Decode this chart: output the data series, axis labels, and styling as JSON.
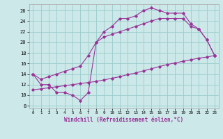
{
  "bg_color": "#cce8e8",
  "line_color": "#993399",
  "grid_color": "#99cccc",
  "xlabel": "Windchill (Refroidissement éolien,°C)",
  "ylabel_ticks": [
    8,
    10,
    12,
    14,
    16,
    18,
    20,
    22,
    24,
    26
  ],
  "xlabel_ticks": [
    0,
    1,
    2,
    3,
    4,
    5,
    6,
    7,
    8,
    9,
    10,
    11,
    12,
    13,
    14,
    15,
    16,
    17,
    18,
    19,
    20,
    21,
    22,
    23
  ],
  "xlim": [
    -0.5,
    23.5
  ],
  "ylim": [
    7.5,
    27.2
  ],
  "line1_x": [
    0,
    1,
    2,
    3,
    4,
    5,
    6,
    7,
    8,
    9,
    10,
    11,
    12,
    13,
    14,
    15,
    16,
    17,
    18,
    19,
    20,
    21,
    22,
    23
  ],
  "line1_y": [
    14,
    12,
    12,
    10.5,
    10.5,
    10,
    9,
    10.5,
    20,
    22,
    23,
    24.5,
    24.5,
    25,
    26,
    26.5,
    26,
    25.5,
    25.5,
    25.5,
    23.5,
    22.5,
    20.5,
    17.5
  ],
  "line2_x": [
    0,
    1,
    2,
    3,
    4,
    5,
    6,
    7,
    8,
    9,
    10,
    11,
    12,
    13,
    14,
    15,
    16,
    17,
    18,
    19,
    20,
    21,
    22,
    23
  ],
  "line2_y": [
    14,
    13,
    13.5,
    14,
    14.5,
    15,
    15.5,
    17.5,
    20,
    21,
    21.5,
    22,
    22.5,
    23,
    23.5,
    24,
    24.5,
    24.5,
    24.5,
    24.5,
    23,
    22.5,
    20.5,
    17.5
  ],
  "line3_x": [
    0,
    1,
    2,
    3,
    4,
    5,
    6,
    7,
    8,
    9,
    10,
    11,
    12,
    13,
    14,
    15,
    16,
    17,
    18,
    19,
    20,
    21,
    22,
    23
  ],
  "line3_y": [
    11,
    11.2,
    11.4,
    11.6,
    11.8,
    12.0,
    12.2,
    12.4,
    12.6,
    12.9,
    13.2,
    13.5,
    13.9,
    14.2,
    14.6,
    15.0,
    15.4,
    15.8,
    16.1,
    16.4,
    16.7,
    17.0,
    17.2,
    17.5
  ]
}
